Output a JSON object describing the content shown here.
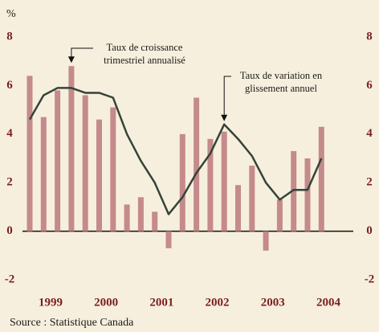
{
  "chart_data": {
    "type": "bar_line",
    "y_unit": "%",
    "categories": [
      null,
      null,
      null,
      null,
      null,
      null,
      null,
      null,
      null,
      null,
      null,
      null,
      null,
      null,
      null,
      null,
      null,
      null,
      null,
      null,
      null,
      null
    ],
    "years": [
      "1999",
      "2000",
      "2001",
      "2002",
      "2003",
      "2004"
    ],
    "series": [
      {
        "name": "Taux de croissance trimestriel annualisé",
        "type": "bar",
        "color": "#c48a8c",
        "values": [
          6.4,
          4.7,
          5.8,
          6.8,
          5.6,
          4.6,
          5.1,
          1.1,
          1.4,
          0.8,
          -0.7,
          4.0,
          5.5,
          3.8,
          4.1,
          1.9,
          2.7,
          -0.8,
          1.3,
          3.3,
          3.0,
          4.3
        ]
      },
      {
        "name": "Taux de variation en glissement annuel",
        "type": "line",
        "color": "#34443a",
        "values": [
          4.6,
          5.6,
          5.9,
          5.9,
          5.7,
          5.7,
          5.5,
          4.0,
          2.9,
          2.0,
          0.7,
          1.4,
          2.4,
          3.2,
          4.4,
          3.8,
          3.1,
          2.0,
          1.3,
          1.7,
          1.7,
          3.0
        ]
      }
    ],
    "annotations": [
      {
        "lines": [
          "Taux de croissance",
          "trimestriel annualisé"
        ],
        "series": 0,
        "index": 3
      },
      {
        "lines": [
          "Taux de variation en",
          "glissement annuel"
        ],
        "series": 1,
        "index": 14
      }
    ],
    "ylim": [
      -2,
      8
    ],
    "yticks": [
      -2,
      0,
      2,
      4,
      6,
      8
    ],
    "source": "Source : Statistique Canada"
  }
}
